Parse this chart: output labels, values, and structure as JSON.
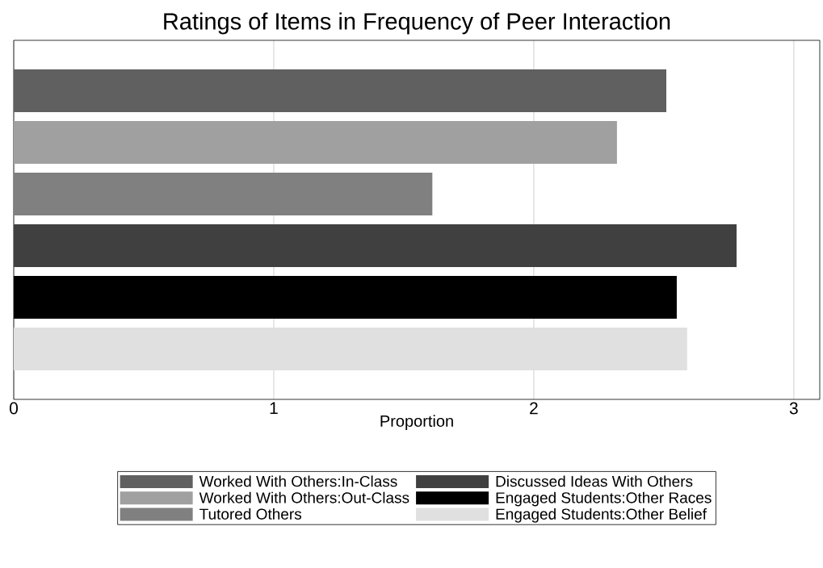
{
  "chart_data": {
    "type": "bar",
    "orientation": "horizontal",
    "title": "Ratings of Items in Frequency of Peer Interaction",
    "xlabel": "Proportion",
    "categories": [
      null
    ],
    "series": [
      {
        "name": "Worked With Others:In-Class",
        "color": "#606060",
        "values": [
          2.51
        ]
      },
      {
        "name": "Worked With Others:Out-Class",
        "color": "#a0a0a0",
        "values": [
          2.32
        ]
      },
      {
        "name": "Tutored Others",
        "color": "#808080",
        "values": [
          1.61
        ]
      },
      {
        "name": "Discussed Ideas With Others",
        "color": "#404040",
        "values": [
          2.78
        ]
      },
      {
        "name": "Engaged Students:Other Races",
        "color": "#000000",
        "values": [
          2.55
        ]
      },
      {
        "name": "Engaged Students:Other Belief",
        "color": "#e0e0e0",
        "values": [
          2.59
        ]
      }
    ],
    "xlim": [
      0,
      3.1
    ],
    "xticks": [
      0,
      1,
      2,
      3
    ],
    "grid": "x",
    "legend": "bottom"
  }
}
